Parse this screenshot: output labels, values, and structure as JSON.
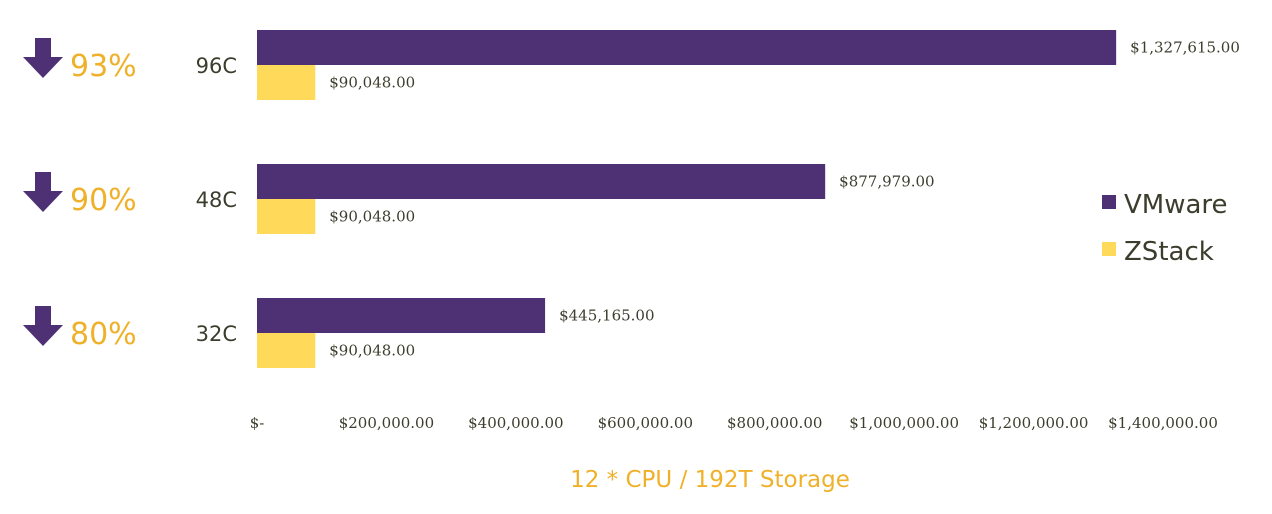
{
  "chart_data": {
    "type": "bar",
    "orientation": "horizontal",
    "categories": [
      "96C",
      "48C",
      "32C"
    ],
    "series": [
      {
        "name": "VMware",
        "values": [
          1327615,
          877979,
          445165
        ]
      },
      {
        "name": "ZStack",
        "values": [
          90048,
          90048,
          90048
        ]
      }
    ],
    "data_labels": {
      "VMware": [
        "$1,327,615.00",
        "$877,979.00",
        "$445,165.00"
      ],
      "ZStack": [
        "$90,048.00",
        "$90,048.00",
        "$90,048.00"
      ]
    },
    "reduction_labels": [
      "93%",
      "90%",
      "80%"
    ],
    "xlabel": "12 * CPU / 192T Storage",
    "xlim": [
      0,
      1400000
    ],
    "xticks": [
      0,
      200000,
      400000,
      600000,
      800000,
      1000000,
      1200000,
      1400000
    ],
    "xtick_labels": [
      "$-",
      "$200,000.00",
      "$400,000.00",
      "$600,000.00",
      "$800,000.00",
      "$1,000,000.00",
      "$1,200,000.00",
      "$1,400,000.00"
    ],
    "legend_position": "right",
    "grid": false
  },
  "colors": {
    "vmware": "#4e3174",
    "zstack": "#ffd95a",
    "accent": "#f0b12a",
    "arrow": "#4e3174",
    "text": "#3d3d2e"
  },
  "icons": {
    "reduction": "arrow-down-icon"
  }
}
